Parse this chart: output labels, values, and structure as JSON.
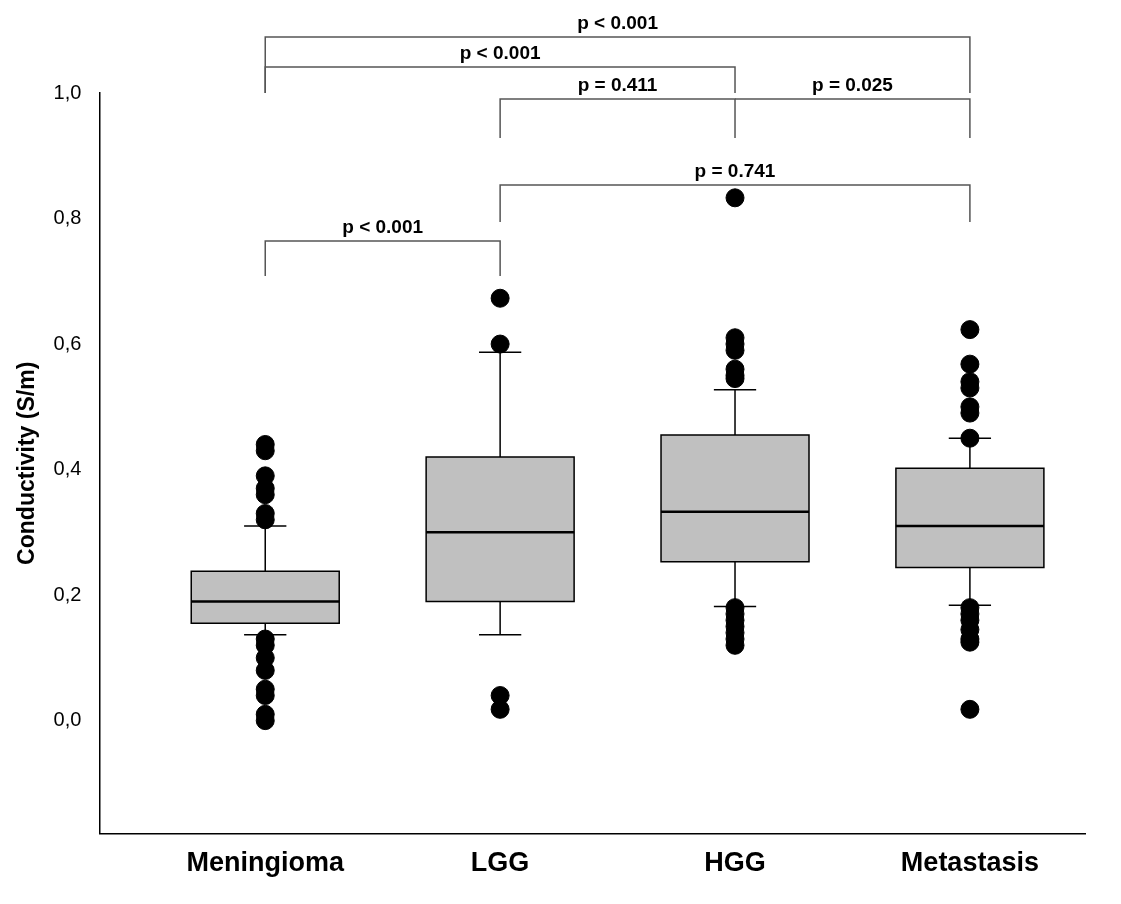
{
  "chart_data": {
    "type": "box",
    "ylabel": "Conductivity (S/m)",
    "categories": [
      "Meningioma",
      "LGG",
      "HGG",
      "Metastasis"
    ],
    "ylim": [
      -0.18,
      1.0
    ],
    "yticks": [
      {
        "value": 0,
        "label": "0,0"
      },
      {
        "value": 0.2,
        "label": "0,2"
      },
      {
        "value": 0.4,
        "label": "0,4"
      },
      {
        "value": 0.6,
        "label": "0,6"
      },
      {
        "value": 0.8,
        "label": "0,8"
      },
      {
        "value": 1,
        "label": "1,0"
      }
    ],
    "grid": false,
    "legend": false,
    "marker": "circle",
    "series": [
      {
        "color": "#c0c0c0",
        "boxes": [
          {
            "low": 0.137,
            "q1": 0.155,
            "median": 0.19,
            "q3": 0.238,
            "high": 0.31,
            "outliers": [
              0.44,
              0.43,
              0.39,
              0.37,
              0.36,
              0.33,
              0.32,
              0.13,
              0.12,
              0.1,
              0.08,
              0.05,
              0.04,
              0.01,
              0.0
            ]
          },
          {
            "low": 0.137,
            "q1": 0.19,
            "median": 0.3,
            "q3": 0.42,
            "high": 0.587,
            "outliers": [
              0.673,
              0.6,
              0.04,
              0.018
            ]
          },
          {
            "low": 0.182,
            "q1": 0.253,
            "median": 0.333,
            "q3": 0.455,
            "high": 0.527,
            "outliers": [
              0.833,
              0.61,
              0.6,
              0.59,
              0.56,
              0.55,
              0.545,
              0.18,
              0.17,
              0.16,
              0.15,
              0.14,
              0.13,
              0.12
            ]
          },
          {
            "low": 0.184,
            "q1": 0.244,
            "median": 0.31,
            "q3": 0.402,
            "high": 0.45,
            "outliers": [
              0.623,
              0.568,
              0.54,
              0.53,
              0.5,
              0.49,
              0.45,
              0.18,
              0.17,
              0.16,
              0.145,
              0.13,
              0.125,
              0.018
            ]
          }
        ]
      }
    ],
    "annotations": [
      "p < 0.001",
      "p < 0.001",
      "p = 0.411",
      "p = 0.025",
      "p = 0.741",
      "p < 0.001"
    ]
  }
}
